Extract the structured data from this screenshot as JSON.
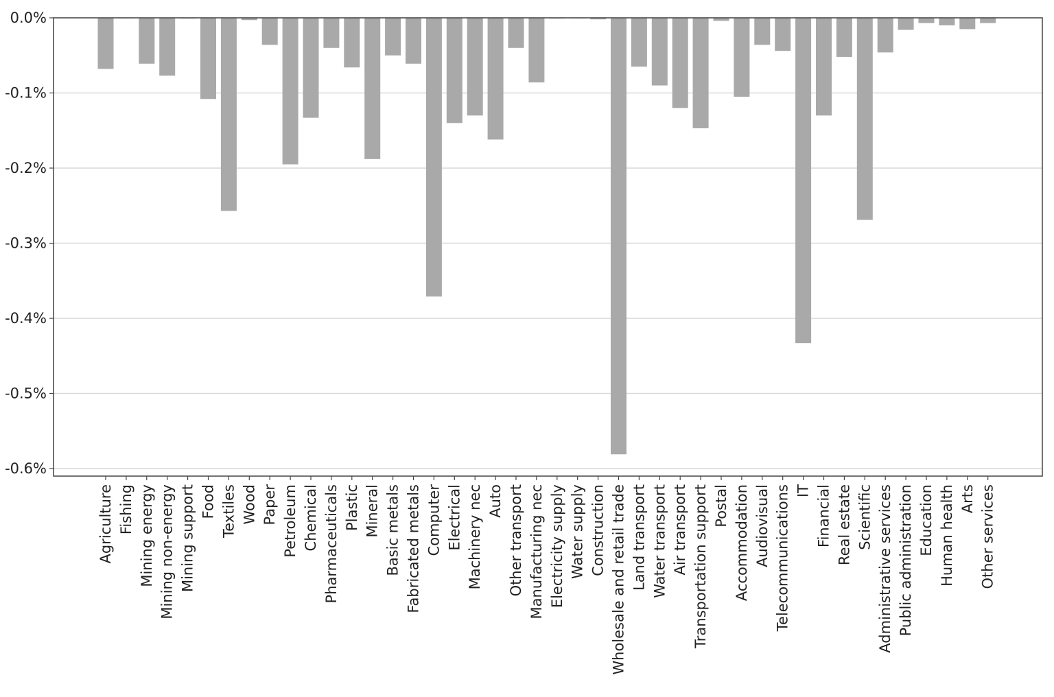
{
  "chart_data": {
    "type": "bar",
    "title": "",
    "xlabel": "",
    "ylabel": "",
    "categories": [
      "Agriculture",
      "Fishing",
      "Mining energy",
      "Mining non-energy",
      "Mining support",
      "Food",
      "Textiles",
      "Wood",
      "Paper",
      "Petroleum",
      "Chemical",
      "Pharmaceuticals",
      "Plastic",
      "Mineral",
      "Basic metals",
      "Fabricated metals",
      "Computer",
      "Electrical",
      "Machinery nec",
      "Auto",
      "Other transport",
      "Manufacturing nec",
      "Electricity supply",
      "Water supply",
      "Construction",
      "Wholesale and retail trade",
      "Land transport",
      "Water transport",
      "Air transport",
      "Transportation support",
      "Postal",
      "Accommodation",
      "Audiovisual",
      "Telecommunications",
      "IT",
      "Financial",
      "Real estate",
      "Scientific",
      "Administrative services",
      "Public administration",
      "Education",
      "Human health",
      "Arts",
      "Other services"
    ],
    "values": [
      -0.068,
      0.0,
      -0.061,
      -0.077,
      -0.001,
      -0.108,
      -0.257,
      -0.003,
      -0.036,
      -0.195,
      -0.133,
      -0.04,
      -0.066,
      -0.188,
      -0.05,
      -0.061,
      -0.371,
      -0.14,
      -0.13,
      -0.162,
      -0.04,
      -0.086,
      -0.001,
      0.0,
      -0.002,
      -0.581,
      -0.065,
      -0.09,
      -0.12,
      -0.147,
      -0.004,
      -0.105,
      -0.036,
      -0.044,
      -0.433,
      -0.13,
      -0.052,
      -0.269,
      -0.046,
      -0.016,
      -0.007,
      -0.01,
      -0.015,
      -0.007
    ],
    "ylim": [
      -0.61,
      0.0
    ],
    "yticks": [
      0.0,
      -0.1,
      -0.2,
      -0.3,
      -0.4,
      -0.5,
      -0.6
    ],
    "ytick_labels": [
      "0.0%",
      "-0.1%",
      "-0.2%",
      "-0.3%",
      "-0.4%",
      "-0.5%",
      "-0.6%"
    ],
    "grid": true,
    "bar_color": "#a9a9a9",
    "grid_color": "#d9d9d9",
    "axis_color": "#444444"
  }
}
